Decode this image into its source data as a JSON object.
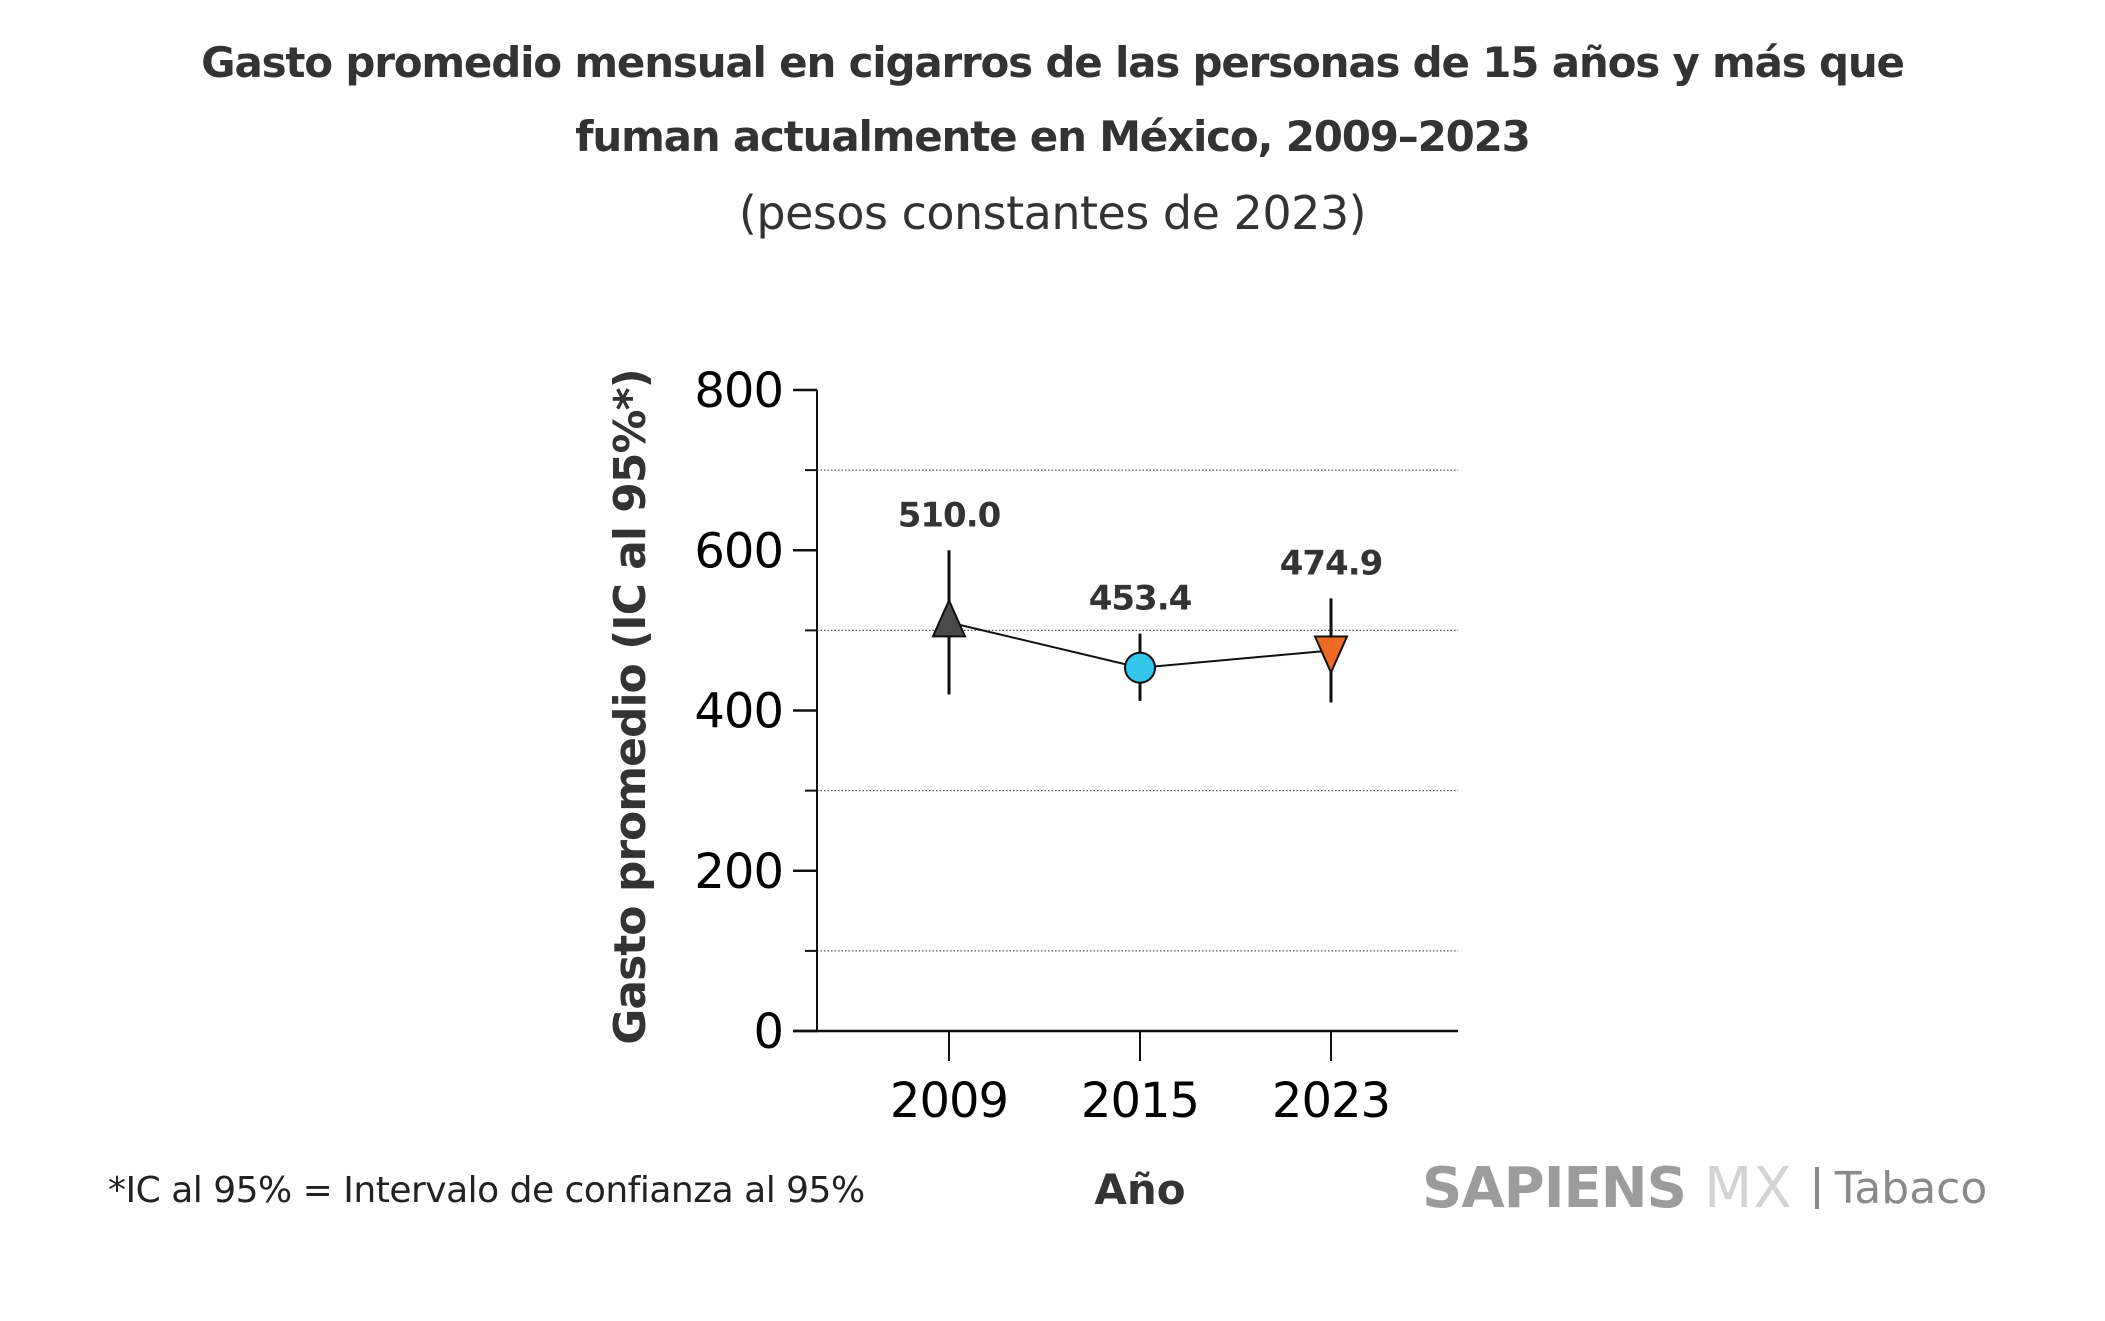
{
  "header": {
    "title_line1": "Gasto promedio mensual en cigarros de las personas de 15 años  y más que",
    "title_line2": "fuman actualmente en México, 2009–2023",
    "subtitle": "(pesos constantes de 2023)"
  },
  "footer": {
    "footnote": "*IC al 95% = Intervalo de confianza al 95%",
    "logo_sapiens": "SAPIENS",
    "logo_mx": "MX",
    "logo_tabaco": "Tabaco"
  },
  "chart_data": {
    "type": "line",
    "title": "Gasto promedio mensual en cigarros de las personas de 15 años  y más que fuman actualmente en México, 2009–2023",
    "subtitle": "(pesos constantes de 2023)",
    "xlabel": "Año",
    "ylabel": "Gasto promedio (IC al 95%*)",
    "categories": [
      "2009",
      "2015",
      "2023"
    ],
    "ylim": [
      0,
      800
    ],
    "yticks": [
      0,
      200,
      400,
      600,
      800
    ],
    "ytick_labels": [
      "0",
      "200",
      "400",
      "600",
      "800"
    ],
    "minor_gridlines": [
      100,
      300,
      500,
      700
    ],
    "grid": "dotted horizontal at minor ticks",
    "series": [
      {
        "name": "Gasto promedio",
        "values": [
          510.0,
          453.4,
          474.9
        ],
        "labels": [
          "510.0",
          "453.4",
          "474.9"
        ],
        "ci_lower": [
          420,
          412,
          410
        ],
        "ci_upper": [
          600,
          496,
          540
        ],
        "markers": [
          "triangle-up",
          "circle",
          "triangle-down"
        ],
        "colors": [
          "#4a4a4a",
          "#33c6ec",
          "#ee6a24"
        ]
      }
    ]
  }
}
